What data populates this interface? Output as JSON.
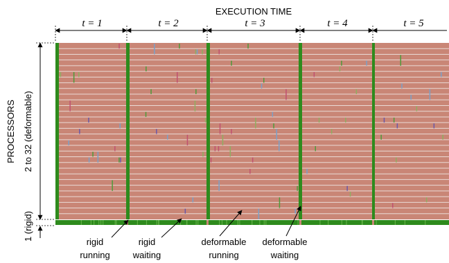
{
  "title": "EXECUTION TIME",
  "intervals": [
    "t = 1",
    "t = 2",
    "t = 3",
    "t = 4",
    "t = 5"
  ],
  "y_axis": {
    "deformable_line1": "PROCESSORS",
    "deformable_line2": "2 to 32 (deformable)",
    "rigid": "1 (rigid)"
  },
  "annotations": {
    "rigid_running": [
      "rigid",
      "running"
    ],
    "rigid_waiting": [
      "rigid",
      "waiting"
    ],
    "deformable_running": [
      "deformable",
      "running"
    ],
    "deformable_waiting": [
      "deformable",
      "waiting"
    ]
  },
  "colors": {
    "deformable_running": "#c98676",
    "waiting": "#2e8b1d",
    "row_separator": "#eadbd6"
  },
  "deformable_processor_count": 31
}
